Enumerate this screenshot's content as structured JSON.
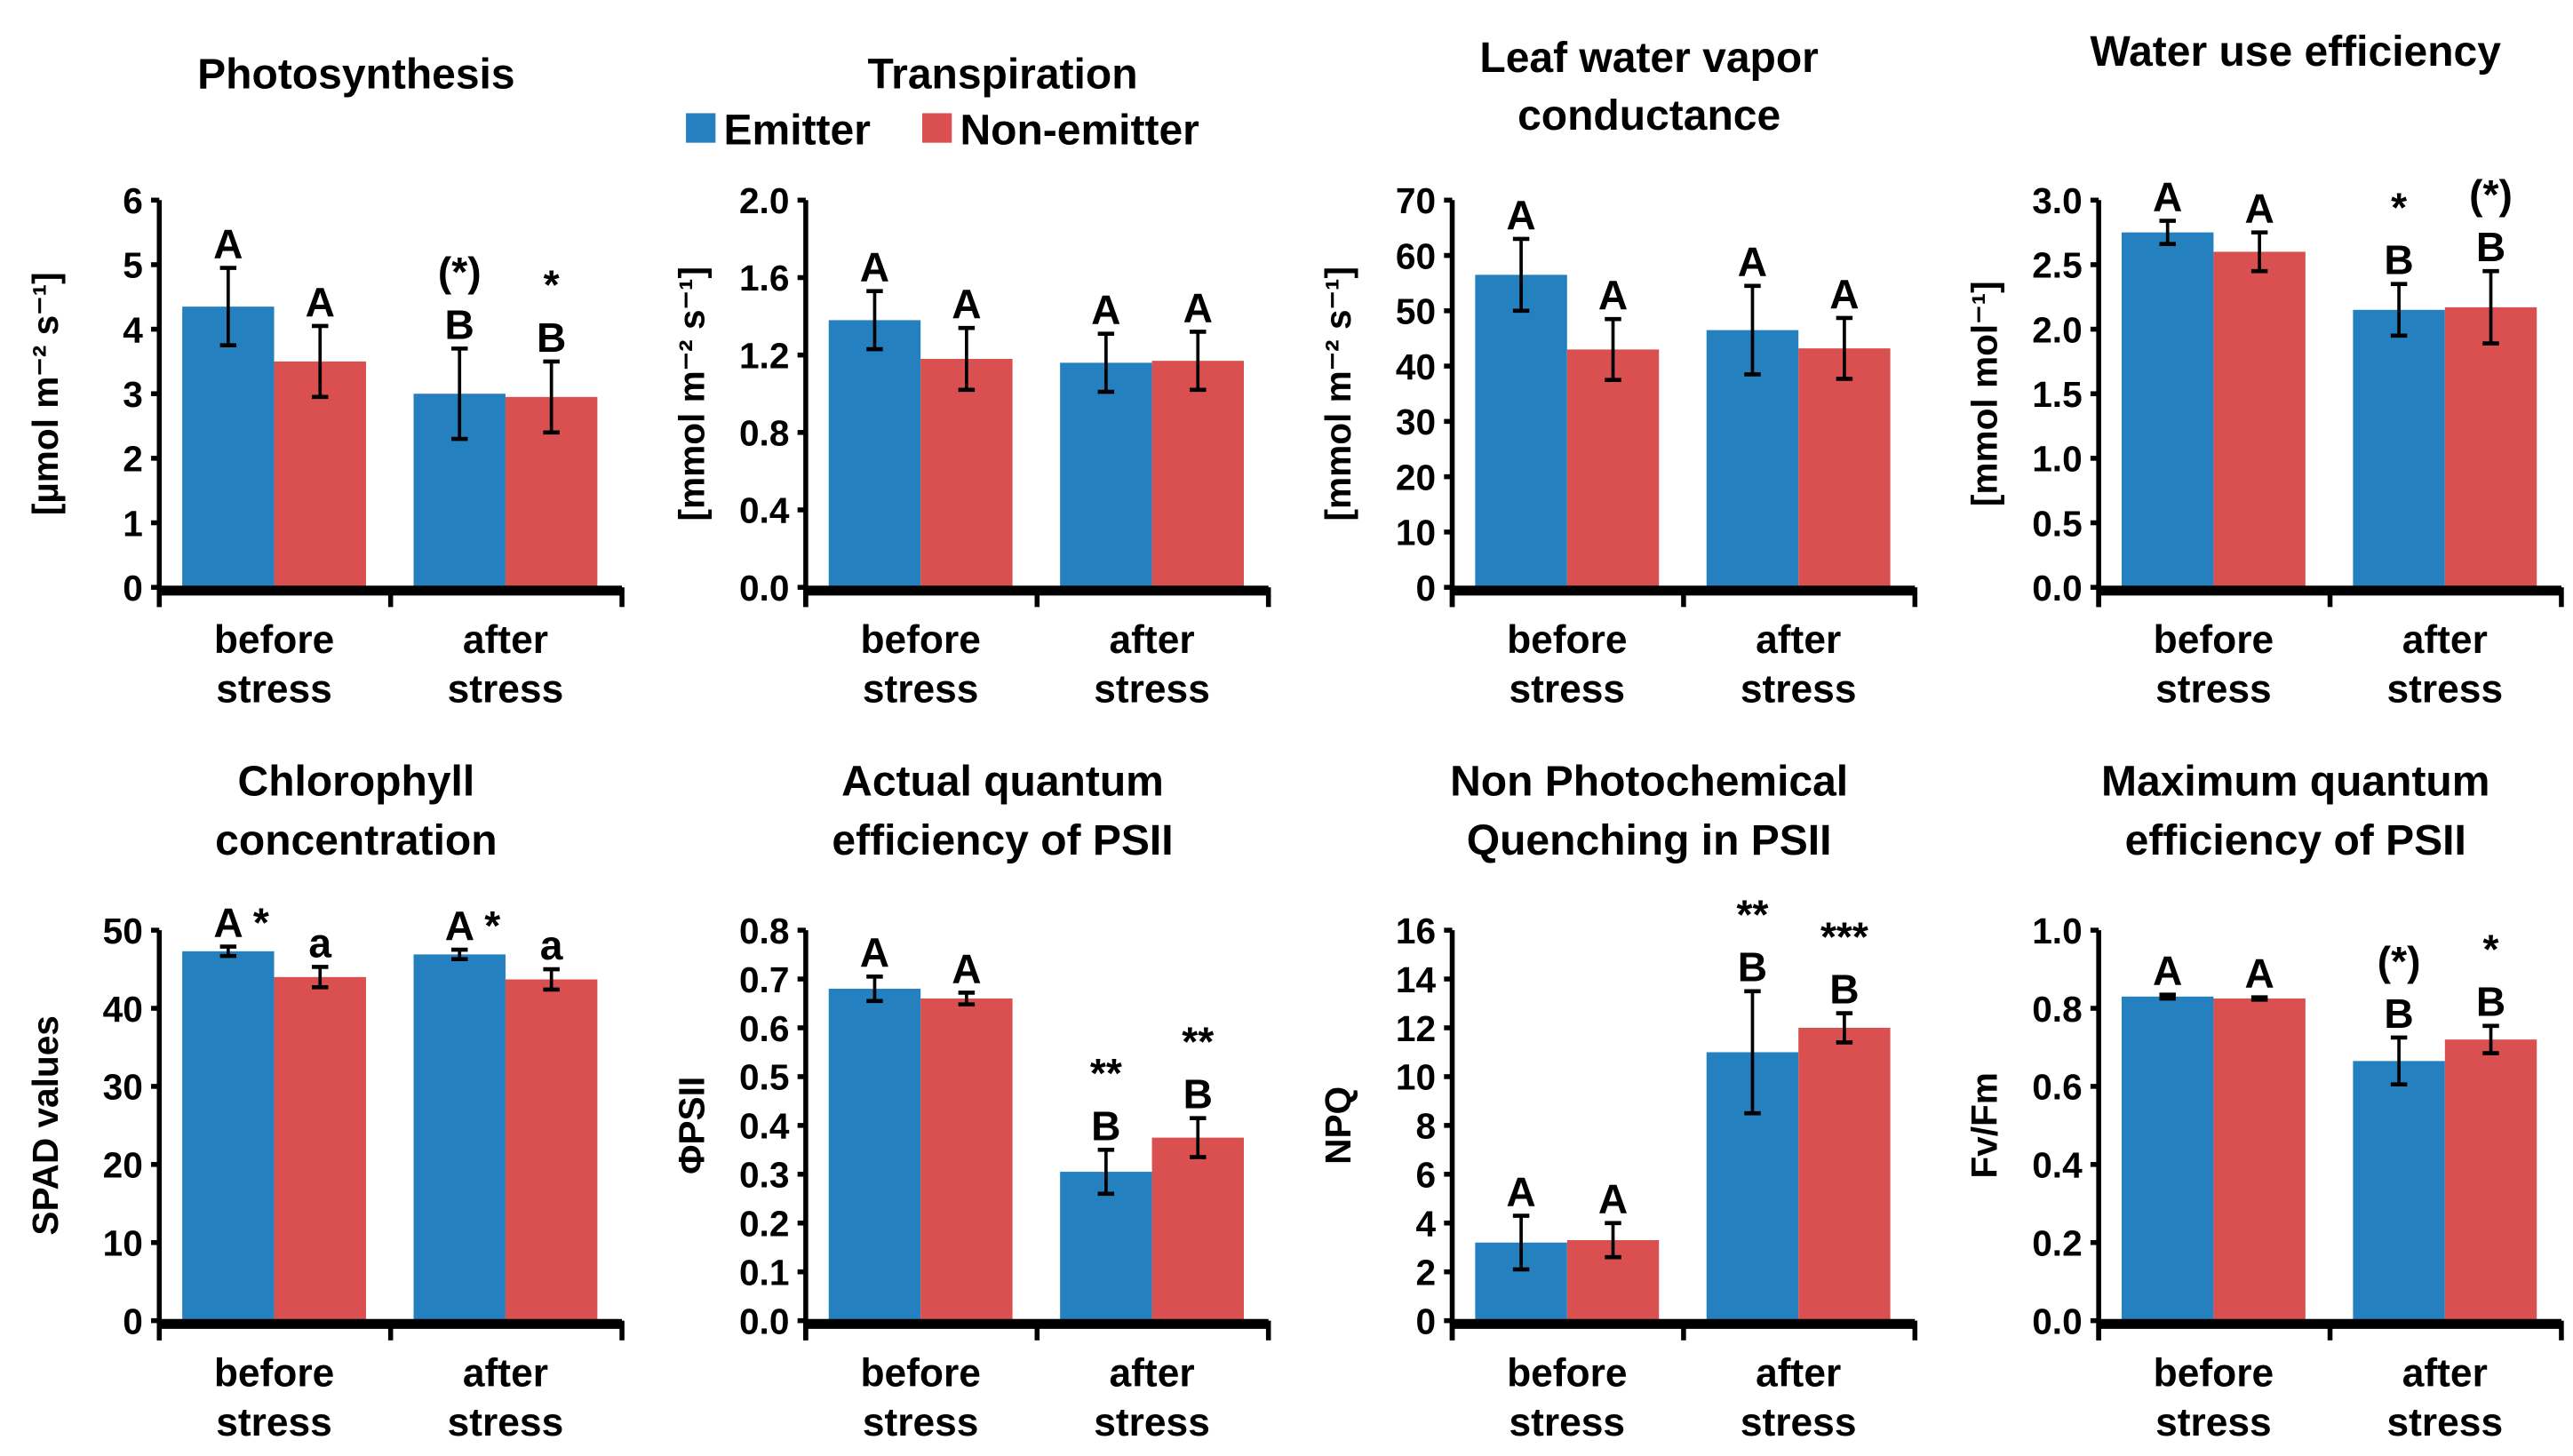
{
  "legend": {
    "series": [
      {
        "name": "Emitter",
        "color": "#2580c0"
      },
      {
        "name": "Non-emitter",
        "color": "#da4f4f"
      }
    ]
  },
  "chart_data": [
    {
      "type": "bar",
      "title": [
        "Photosynthesis"
      ],
      "ylabel": "[µmol m⁻² s⁻¹]",
      "ylim": [
        0,
        6
      ],
      "yticks": [
        0,
        1,
        2,
        3,
        4,
        5,
        6
      ],
      "decimals": 0,
      "categories": [
        [
          "before",
          "stress"
        ],
        [
          "after",
          "stress"
        ]
      ],
      "series": [
        {
          "name": "Emitter",
          "values": [
            4.35,
            3.0
          ],
          "errors": [
            0.6,
            0.7
          ]
        },
        {
          "name": "Non-emitter",
          "values": [
            3.5,
            2.95
          ],
          "errors": [
            0.55,
            0.55
          ]
        }
      ],
      "annotations": [
        [
          [
            "A"
          ],
          [
            "A"
          ]
        ],
        [
          [
            "(*)",
            "B"
          ],
          [
            "*",
            "B"
          ]
        ]
      ]
    },
    {
      "type": "bar",
      "title": [
        "Transpiration"
      ],
      "ylabel": "[mmol m⁻² s⁻¹]",
      "ylim": [
        0,
        2.0
      ],
      "yticks": [
        0,
        0.4,
        0.8,
        1.2,
        1.6,
        2.0
      ],
      "decimals": 1,
      "categories": [
        [
          "before",
          "stress"
        ],
        [
          "after",
          "stress"
        ]
      ],
      "series": [
        {
          "name": "Emitter",
          "values": [
            1.38,
            1.16
          ],
          "errors": [
            0.15,
            0.15
          ]
        },
        {
          "name": "Non-emitter",
          "values": [
            1.18,
            1.17
          ],
          "errors": [
            0.16,
            0.15
          ]
        }
      ],
      "annotations": [
        [
          [
            "A"
          ],
          [
            "A"
          ]
        ],
        [
          [
            "A"
          ],
          [
            "A"
          ]
        ]
      ]
    },
    {
      "type": "bar",
      "title": [
        "Leaf water vapor",
        "conductance"
      ],
      "ylabel": "[mmol m⁻² s⁻¹]",
      "ylim": [
        0,
        70
      ],
      "yticks": [
        0,
        10,
        20,
        30,
        40,
        50,
        60,
        70
      ],
      "decimals": 0,
      "categories": [
        [
          "before",
          "stress"
        ],
        [
          "after",
          "stress"
        ]
      ],
      "series": [
        {
          "name": "Emitter",
          "values": [
            56.5,
            46.5
          ],
          "errors": [
            6.5,
            8
          ]
        },
        {
          "name": "Non-emitter",
          "values": [
            43,
            43.2
          ],
          "errors": [
            5.5,
            5.5
          ]
        }
      ],
      "annotations": [
        [
          [
            "A"
          ],
          [
            "A"
          ]
        ],
        [
          [
            "A"
          ],
          [
            "A"
          ]
        ]
      ]
    },
    {
      "type": "bar",
      "title": [
        "Water use efficiency"
      ],
      "ylabel": "[mmol mol⁻¹]",
      "ylim": [
        0,
        3.0
      ],
      "yticks": [
        0,
        0.5,
        1.0,
        1.5,
        2.0,
        2.5,
        3.0
      ],
      "decimals": 1,
      "categories": [
        [
          "before",
          "stress"
        ],
        [
          "after",
          "stress"
        ]
      ],
      "series": [
        {
          "name": "Emitter",
          "values": [
            2.75,
            2.15
          ],
          "errors": [
            0.09,
            0.2
          ]
        },
        {
          "name": "Non-emitter",
          "values": [
            2.6,
            2.17
          ],
          "errors": [
            0.15,
            0.28
          ]
        }
      ],
      "annotations": [
        [
          [
            "A"
          ],
          [
            "A"
          ]
        ],
        [
          [
            "*",
            "B"
          ],
          [
            "(*)",
            "B"
          ]
        ]
      ]
    },
    {
      "type": "bar",
      "title": [
        "Chlorophyll",
        "concentration"
      ],
      "ylabel": "SPAD values",
      "ylim": [
        0,
        50
      ],
      "yticks": [
        0,
        10,
        20,
        30,
        40,
        50
      ],
      "decimals": 0,
      "categories": [
        [
          "before",
          "stress"
        ],
        [
          "after",
          "stress"
        ]
      ],
      "series": [
        {
          "name": "Emitter",
          "values": [
            47.3,
            46.9
          ],
          "errors": [
            0.6,
            0.6
          ]
        },
        {
          "name": "Non-emitter",
          "values": [
            44,
            43.7
          ],
          "errors": [
            1.3,
            1.3
          ]
        }
      ],
      "annotations": [
        [
          [
            "A *"
          ],
          [
            "a"
          ]
        ],
        [
          [
            "A *"
          ],
          [
            "a"
          ]
        ]
      ]
    },
    {
      "type": "bar",
      "title": [
        "Actual quantum",
        "efficiency of PSII"
      ],
      "ylabel": "ΦPSII",
      "ylim": [
        0,
        0.8
      ],
      "yticks": [
        0,
        0.1,
        0.2,
        0.3,
        0.4,
        0.5,
        0.6,
        0.7,
        0.8
      ],
      "decimals": 1,
      "categories": [
        [
          "before",
          "stress"
        ],
        [
          "after",
          "stress"
        ]
      ],
      "series": [
        {
          "name": "Emitter",
          "values": [
            0.68,
            0.305
          ],
          "errors": [
            0.025,
            0.045
          ]
        },
        {
          "name": "Non-emitter",
          "values": [
            0.66,
            0.375
          ],
          "errors": [
            0.012,
            0.04
          ]
        }
      ],
      "annotations": [
        [
          [
            "A"
          ],
          [
            "A"
          ]
        ],
        [
          [
            "**",
            "B"
          ],
          [
            "**",
            "B"
          ]
        ]
      ]
    },
    {
      "type": "bar",
      "title": [
        "Non Photochemical",
        "Quenching in PSII"
      ],
      "ylabel": "NPQ",
      "ylim": [
        0,
        16
      ],
      "yticks": [
        0,
        2,
        4,
        6,
        8,
        10,
        12,
        14,
        16
      ],
      "decimals": 0,
      "categories": [
        [
          "before",
          "stress"
        ],
        [
          "after",
          "stress"
        ]
      ],
      "series": [
        {
          "name": "Emitter",
          "values": [
            3.2,
            11
          ],
          "errors": [
            1.1,
            2.5
          ]
        },
        {
          "name": "Non-emitter",
          "values": [
            3.3,
            12
          ],
          "errors": [
            0.7,
            0.6
          ]
        }
      ],
      "annotations": [
        [
          [
            "A"
          ],
          [
            "A"
          ]
        ],
        [
          [
            "**",
            "B"
          ],
          [
            "***",
            "B"
          ]
        ]
      ]
    },
    {
      "type": "bar",
      "title": [
        "Maximum quantum",
        "efficiency of PSII"
      ],
      "ylabel": "Fv/Fm",
      "ylim": [
        0,
        1.0
      ],
      "yticks": [
        0,
        0.2,
        0.4,
        0.6,
        0.8,
        1.0
      ],
      "decimals": 1,
      "categories": [
        [
          "before",
          "stress"
        ],
        [
          "after",
          "stress"
        ]
      ],
      "series": [
        {
          "name": "Emitter",
          "values": [
            0.83,
            0.665
          ],
          "errors": [
            0.005,
            0.06
          ]
        },
        {
          "name": "Non-emitter",
          "values": [
            0.825,
            0.72
          ],
          "errors": [
            0.003,
            0.035
          ]
        }
      ],
      "annotations": [
        [
          [
            "A"
          ],
          [
            "A"
          ]
        ],
        [
          [
            "(*)",
            "B"
          ],
          [
            "*",
            "B"
          ]
        ]
      ]
    }
  ]
}
